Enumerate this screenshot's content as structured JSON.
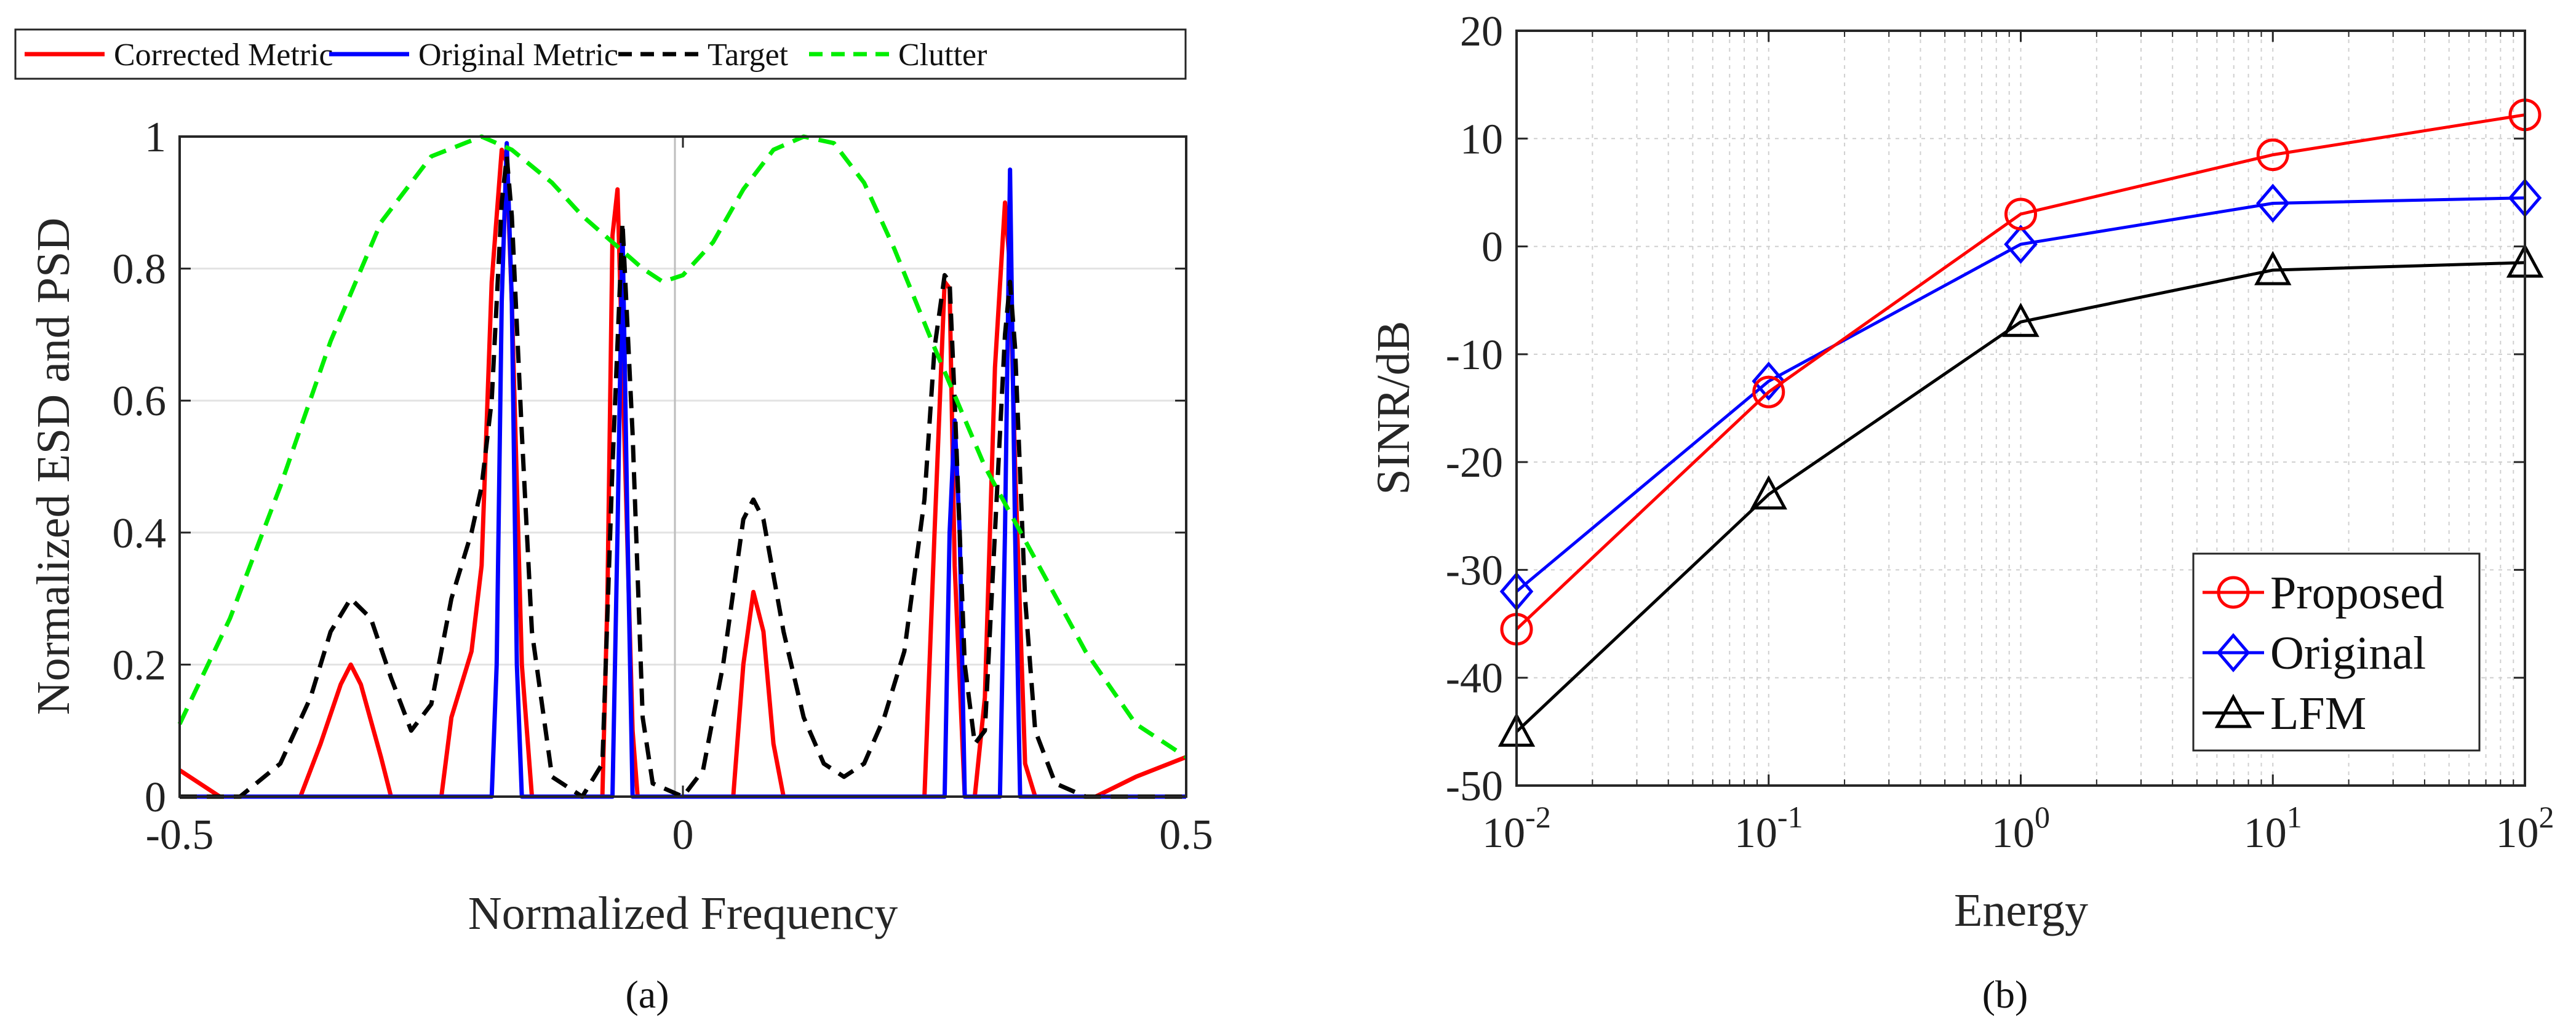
{
  "captions": {
    "a": "(a)",
    "b": "(b)"
  },
  "chart_data": [
    {
      "panel": "(a)",
      "type": "line",
      "title": "",
      "xlabel": "Normalized Frequency",
      "ylabel": "Normalized ESD and PSD",
      "xlim": [
        -0.5,
        0.5
      ],
      "ylim": [
        0,
        1
      ],
      "xticks": [
        "-0.5",
        "0",
        "0.5"
      ],
      "yticks": [
        "0",
        "0.2",
        "0.4",
        "0.6",
        "0.8",
        "1"
      ],
      "grid": true,
      "legend_position": "top, horizontal above plot",
      "series": [
        {
          "name": "Corrected Metric",
          "color": "#ff0000",
          "dash": "solid",
          "x": [
            -0.5,
            -0.47,
            -0.46,
            -0.38,
            -0.36,
            -0.34,
            -0.33,
            -0.32,
            -0.3,
            -0.29,
            -0.24,
            -0.23,
            -0.21,
            -0.2,
            -0.19,
            -0.18,
            -0.175,
            -0.17,
            -0.16,
            -0.15,
            -0.08,
            -0.075,
            -0.07,
            -0.065,
            -0.06,
            -0.05,
            -0.045,
            0.05,
            0.06,
            0.07,
            0.08,
            0.09,
            0.1,
            0.17,
            0.24,
            0.25,
            0.26,
            0.265,
            0.27,
            0.28,
            0.29,
            0.3,
            0.31,
            0.32,
            0.325,
            0.33,
            0.34,
            0.35,
            0.41,
            0.45,
            0.5
          ],
          "values": [
            0.04,
            0.01,
            0,
            0,
            0.08,
            0.17,
            0.2,
            0.17,
            0.06,
            0,
            0,
            0.12,
            0.22,
            0.35,
            0.78,
            0.98,
            0.96,
            0.75,
            0.2,
            0,
            0,
            0.3,
            0.85,
            0.92,
            0.65,
            0.1,
            0,
            0,
            0.2,
            0.31,
            0.25,
            0.08,
            0,
            0,
            0,
            0.4,
            0.78,
            0.77,
            0.35,
            0,
            0,
            0.15,
            0.65,
            0.9,
            0.8,
            0.5,
            0.05,
            0,
            0,
            0.03,
            0.06
          ]
        },
        {
          "name": "Original Metric",
          "color": "#0000ff",
          "dash": "solid",
          "x": [
            -0.5,
            -0.19,
            -0.185,
            -0.18,
            -0.175,
            -0.17,
            -0.165,
            -0.16,
            -0.07,
            -0.065,
            -0.06,
            -0.055,
            -0.05,
            0.26,
            0.265,
            0.27,
            0.275,
            0.28,
            0.315,
            0.32,
            0.325,
            0.33,
            0.335,
            0.34,
            0.5
          ],
          "values": [
            0,
            0,
            0.2,
            0.75,
            0.99,
            0.75,
            0.2,
            0,
            0,
            0.4,
            0.86,
            0.4,
            0,
            0,
            0.4,
            0.57,
            0.4,
            0,
            0,
            0.4,
            0.95,
            0.4,
            0,
            0,
            0
          ]
        },
        {
          "name": "Target",
          "color": "#000000",
          "dash": "dashed",
          "x": [
            -0.5,
            -0.44,
            -0.4,
            -0.37,
            -0.35,
            -0.33,
            -0.31,
            -0.29,
            -0.27,
            -0.25,
            -0.23,
            -0.21,
            -0.2,
            -0.19,
            -0.18,
            -0.175,
            -0.17,
            -0.16,
            -0.15,
            -0.13,
            -0.1,
            -0.08,
            -0.07,
            -0.06,
            -0.05,
            -0.04,
            -0.03,
            0,
            0.02,
            0.04,
            0.06,
            0.07,
            0.08,
            0.1,
            0.12,
            0.14,
            0.16,
            0.18,
            0.2,
            0.22,
            0.24,
            0.25,
            0.26,
            0.265,
            0.27,
            0.28,
            0.29,
            0.3,
            0.31,
            0.32,
            0.325,
            0.33,
            0.34,
            0.35,
            0.37,
            0.4,
            0.5
          ],
          "values": [
            0,
            0,
            0.05,
            0.15,
            0.25,
            0.3,
            0.27,
            0.18,
            0.1,
            0.14,
            0.3,
            0.4,
            0.47,
            0.6,
            0.9,
            0.97,
            0.88,
            0.55,
            0.25,
            0.03,
            0,
            0.05,
            0.5,
            0.87,
            0.55,
            0.12,
            0.02,
            0,
            0.04,
            0.2,
            0.42,
            0.45,
            0.42,
            0.25,
            0.12,
            0.05,
            0.03,
            0.05,
            0.12,
            0.22,
            0.45,
            0.68,
            0.79,
            0.78,
            0.6,
            0.2,
            0.08,
            0.1,
            0.4,
            0.7,
            0.78,
            0.68,
            0.3,
            0.1,
            0.02,
            0,
            0
          ]
        },
        {
          "name": "Clutter",
          "color": "#00ee00",
          "dash": "dashed",
          "x": [
            -0.5,
            -0.45,
            -0.4,
            -0.35,
            -0.3,
            -0.25,
            -0.2,
            -0.17,
            -0.13,
            -0.1,
            -0.07,
            -0.04,
            -0.02,
            0,
            0.03,
            0.06,
            0.09,
            0.12,
            0.15,
            0.18,
            0.21,
            0.25,
            0.3,
            0.35,
            0.4,
            0.45,
            0.5
          ],
          "values": [
            0.11,
            0.27,
            0.47,
            0.69,
            0.87,
            0.97,
            1.0,
            0.98,
            0.93,
            0.88,
            0.84,
            0.8,
            0.78,
            0.79,
            0.84,
            0.92,
            0.98,
            1.0,
            0.99,
            0.93,
            0.83,
            0.68,
            0.5,
            0.36,
            0.22,
            0.11,
            0.06
          ]
        }
      ]
    },
    {
      "panel": "(b)",
      "type": "line",
      "title": "",
      "xlabel": "Energy",
      "ylabel": "SINR/dB",
      "xscale": "log",
      "xlim": [
        0.01,
        100
      ],
      "ylim": [
        -50,
        20
      ],
      "xtick_base": "10",
      "xtick_exponents": [
        "-2",
        "-1",
        "0",
        "1",
        "2"
      ],
      "yticks": [
        "-50",
        "-40",
        "-30",
        "-20",
        "-10",
        "0",
        "10",
        "20"
      ],
      "grid": true,
      "legend_position": "bottom-right",
      "x": [
        0.01,
        0.1,
        1,
        10,
        100
      ],
      "series": [
        {
          "name": "Proposed",
          "color": "#ff0000",
          "marker": "circle",
          "values": [
            -35.5,
            -13.5,
            3.0,
            8.5,
            12.2
          ]
        },
        {
          "name": "Original",
          "color": "#0000ff",
          "marker": "diamond",
          "values": [
            -32.0,
            -12.5,
            0.2,
            4.0,
            4.5
          ]
        },
        {
          "name": "LFM",
          "color": "#000000",
          "marker": "triangle",
          "values": [
            -45.0,
            -23.0,
            -7.0,
            -2.2,
            -1.5
          ]
        }
      ]
    }
  ]
}
